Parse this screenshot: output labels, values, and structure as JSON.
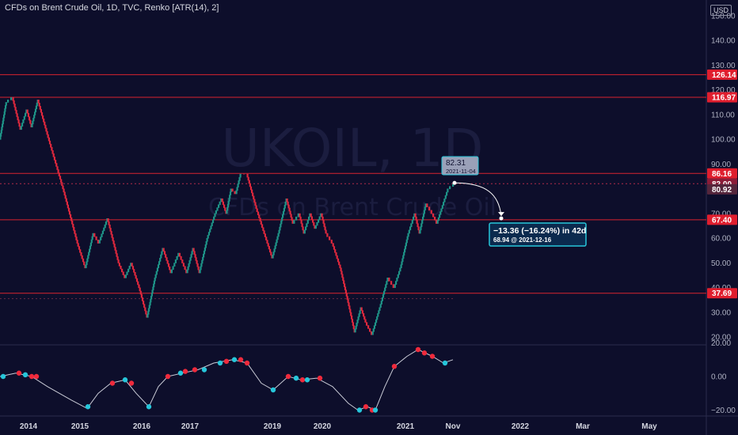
{
  "header": {
    "title": "CFDs on Brent Crude Oil, 1D, TVC, Renko [ATR(14), 2]",
    "currency": "USD"
  },
  "watermark": {
    "symbol": "UKOIL, 1D",
    "description": "CFDs on Brent Crude Oil"
  },
  "colors": {
    "background": "#0d0e2b",
    "up_brick": "#1e9488",
    "down_brick": "#e0283d",
    "level_line": "#d8232f",
    "oscillator_line": "#c9cbd6",
    "osc_up_dot": "#26c6da",
    "osc_down_dot": "#ef2a3c",
    "badge_red": "#e01e2e",
    "current_price_bg": "#8b1c38",
    "prev_close_bg": "#55263c",
    "measure_accent": "#26c6da"
  },
  "chart_data": {
    "type": "renko",
    "price_axis": {
      "ticks": [
        "150.00",
        "140.00",
        "130.00",
        "120.00",
        "110.00",
        "100.00",
        "90.00",
        "80.00",
        "70.00",
        "60.00",
        "50.00",
        "40.00",
        "30.00",
        "20.00"
      ]
    },
    "oscillator_axis": {
      "ticks": [
        "20.00",
        "0.00",
        "−20.00"
      ]
    },
    "time_axis": {
      "ticks": [
        "2014",
        "2015",
        "2016",
        "2017",
        "2019",
        "2020",
        "2021",
        "Nov",
        "2022",
        "Mar",
        "May"
      ]
    },
    "renko_path": [
      [
        0,
        100
      ],
      [
        8,
        115
      ],
      [
        16,
        117
      ],
      [
        26,
        104
      ],
      [
        34,
        112
      ],
      [
        40,
        105
      ],
      [
        48,
        116
      ],
      [
        60,
        102
      ],
      [
        80,
        80
      ],
      [
        98,
        58
      ],
      [
        108,
        48
      ],
      [
        118,
        62
      ],
      [
        125,
        58
      ],
      [
        136,
        68
      ],
      [
        150,
        50
      ],
      [
        158,
        44
      ],
      [
        166,
        50
      ],
      [
        176,
        40
      ],
      [
        186,
        28
      ],
      [
        196,
        44
      ],
      [
        206,
        56
      ],
      [
        216,
        46
      ],
      [
        226,
        54
      ],
      [
        236,
        46
      ],
      [
        244,
        56
      ],
      [
        252,
        46
      ],
      [
        262,
        60
      ],
      [
        272,
        70
      ],
      [
        280,
        76
      ],
      [
        286,
        70
      ],
      [
        292,
        80
      ],
      [
        298,
        78
      ],
      [
        304,
        86
      ],
      [
        312,
        86
      ],
      [
        324,
        72
      ],
      [
        338,
        58
      ],
      [
        344,
        52
      ],
      [
        352,
        62
      ],
      [
        362,
        76
      ],
      [
        370,
        66
      ],
      [
        378,
        70
      ],
      [
        384,
        62
      ],
      [
        392,
        70
      ],
      [
        398,
        64
      ],
      [
        406,
        70
      ],
      [
        412,
        62
      ],
      [
        420,
        58
      ],
      [
        430,
        48
      ],
      [
        440,
        34
      ],
      [
        448,
        22
      ],
      [
        456,
        32
      ],
      [
        462,
        26
      ],
      [
        470,
        21
      ],
      [
        480,
        32
      ],
      [
        490,
        44
      ],
      [
        498,
        40
      ],
      [
        506,
        48
      ],
      [
        516,
        62
      ],
      [
        524,
        70
      ],
      [
        530,
        62
      ],
      [
        538,
        74
      ],
      [
        546,
        70
      ],
      [
        552,
        66
      ],
      [
        558,
        72
      ],
      [
        566,
        80
      ],
      [
        574,
        82
      ]
    ],
    "levels": [
      {
        "label": "126.14",
        "value": 126.14
      },
      {
        "label": "116.97",
        "value": 116.97
      },
      {
        "label": "86.16",
        "value": 86.16
      },
      {
        "label": "67.40",
        "value": 67.4
      },
      {
        "label": "37.69",
        "value": 37.69
      }
    ],
    "current_price": {
      "label": "82.00",
      "value": 82.0
    },
    "prev_close": {
      "label": "80.92",
      "value": 80.92
    },
    "last_point": {
      "price": "82.31",
      "date": "2021-11-04"
    },
    "projection": {
      "change": "−13.36 (−16.24%) in 42d",
      "detail": "68.94 @ 2021-12-16",
      "target_value": 68.94
    },
    "oscillator_path": [
      [
        0,
        0
      ],
      [
        20,
        2
      ],
      [
        40,
        0
      ],
      [
        60,
        -6
      ],
      [
        90,
        -14
      ],
      [
        110,
        -19
      ],
      [
        124,
        -10
      ],
      [
        140,
        -4
      ],
      [
        158,
        -2
      ],
      [
        172,
        -10
      ],
      [
        188,
        -18
      ],
      [
        200,
        -6
      ],
      [
        212,
        0
      ],
      [
        230,
        2
      ],
      [
        250,
        4
      ],
      [
        270,
        8
      ],
      [
        294,
        10
      ],
      [
        312,
        8
      ],
      [
        330,
        -4
      ],
      [
        345,
        -8
      ],
      [
        364,
        0
      ],
      [
        380,
        -2
      ],
      [
        400,
        -1
      ],
      [
        420,
        -6
      ],
      [
        440,
        -16
      ],
      [
        452,
        -20
      ],
      [
        464,
        -18
      ],
      [
        474,
        -20
      ],
      [
        486,
        -6
      ],
      [
        498,
        6
      ],
      [
        514,
        12
      ],
      [
        528,
        16
      ],
      [
        546,
        12
      ],
      [
        560,
        8
      ],
      [
        572,
        10
      ]
    ],
    "oscillator_dots": [
      {
        "x": 4,
        "v": 0,
        "kind": "up"
      },
      {
        "x": 24,
        "v": 2,
        "kind": "down"
      },
      {
        "x": 32,
        "v": 1,
        "kind": "up"
      },
      {
        "x": 40,
        "v": 0,
        "kind": "down"
      },
      {
        "x": 46,
        "v": 0,
        "kind": "down"
      },
      {
        "x": 111,
        "v": -18,
        "kind": "up"
      },
      {
        "x": 142,
        "v": -4,
        "kind": "down"
      },
      {
        "x": 158,
        "v": -2,
        "kind": "up"
      },
      {
        "x": 166,
        "v": -4,
        "kind": "down"
      },
      {
        "x": 188,
        "v": -18,
        "kind": "up"
      },
      {
        "x": 212,
        "v": 0,
        "kind": "down"
      },
      {
        "x": 228,
        "v": 2,
        "kind": "up"
      },
      {
        "x": 234,
        "v": 3,
        "kind": "down"
      },
      {
        "x": 246,
        "v": 4,
        "kind": "down"
      },
      {
        "x": 258,
        "v": 4,
        "kind": "up"
      },
      {
        "x": 278,
        "v": 8,
        "kind": "up"
      },
      {
        "x": 286,
        "v": 9,
        "kind": "down"
      },
      {
        "x": 296,
        "v": 10,
        "kind": "up"
      },
      {
        "x": 304,
        "v": 10,
        "kind": "down"
      },
      {
        "x": 312,
        "v": 8,
        "kind": "down"
      },
      {
        "x": 345,
        "v": -8,
        "kind": "up"
      },
      {
        "x": 364,
        "v": 0,
        "kind": "down"
      },
      {
        "x": 374,
        "v": -1,
        "kind": "up"
      },
      {
        "x": 382,
        "v": -2,
        "kind": "down"
      },
      {
        "x": 388,
        "v": -2,
        "kind": "up"
      },
      {
        "x": 404,
        "v": -1,
        "kind": "down"
      },
      {
        "x": 454,
        "v": -20,
        "kind": "up"
      },
      {
        "x": 462,
        "v": -18,
        "kind": "down"
      },
      {
        "x": 470,
        "v": -20,
        "kind": "down"
      },
      {
        "x": 474,
        "v": -20,
        "kind": "up"
      },
      {
        "x": 498,
        "v": 6,
        "kind": "down"
      },
      {
        "x": 528,
        "v": 16,
        "kind": "down"
      },
      {
        "x": 536,
        "v": 14,
        "kind": "down"
      },
      {
        "x": 546,
        "v": 12,
        "kind": "down"
      },
      {
        "x": 562,
        "v": 8,
        "kind": "up"
      }
    ]
  }
}
